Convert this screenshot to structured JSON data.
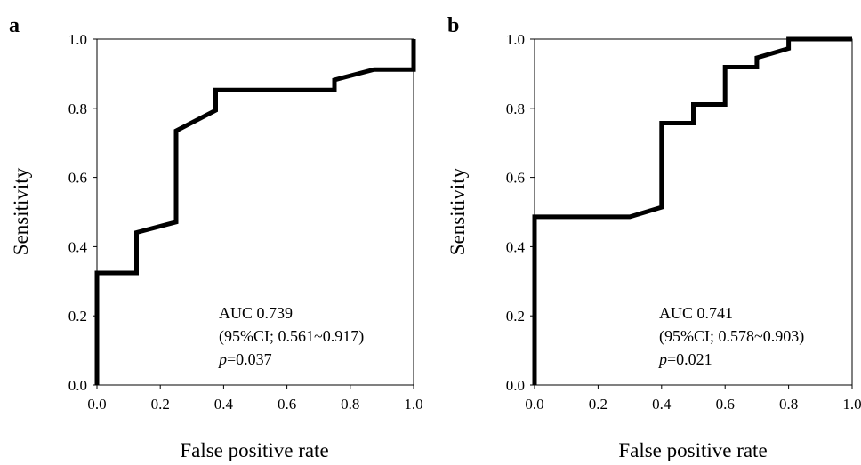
{
  "chart_data": [
    {
      "type": "line",
      "panel_label": "a",
      "xlabel": "False positive rate",
      "ylabel": "Sensitivity",
      "xlim": [
        0,
        1
      ],
      "ylim": [
        0,
        1
      ],
      "xticks": [
        "0.0",
        "0.2",
        "0.4",
        "0.6",
        "0.8",
        "1.0"
      ],
      "yticks": [
        "0.0",
        "0.2",
        "0.4",
        "0.6",
        "0.8",
        "1.0"
      ],
      "grid": false,
      "series": [
        {
          "color": "#000000",
          "x": [
            0.0,
            0.0,
            0.125,
            0.125,
            0.25,
            0.25,
            0.375,
            0.375,
            0.75,
            0.75,
            0.875,
            1.0,
            1.0
          ],
          "y": [
            0.0,
            0.324,
            0.324,
            0.441,
            0.471,
            0.735,
            0.794,
            0.853,
            0.853,
            0.882,
            0.912,
            0.912,
            1.0
          ]
        }
      ],
      "annotation": {
        "auc": "AUC 0.739",
        "ci": "(95%CI; 0.561~0.917)",
        "p_symbol": "p",
        "p_value": "=0.037"
      }
    },
    {
      "type": "line",
      "panel_label": "b",
      "xlabel": "False positive rate",
      "ylabel": "Sensitivity",
      "xlim": [
        0,
        1
      ],
      "ylim": [
        0,
        1
      ],
      "xticks": [
        "0.0",
        "0.2",
        "0.4",
        "0.6",
        "0.8",
        "1.0"
      ],
      "yticks": [
        "0.0",
        "0.2",
        "0.4",
        "0.6",
        "0.8",
        "1.0"
      ],
      "grid": false,
      "series": [
        {
          "color": "#000000",
          "x": [
            0.0,
            0.0,
            0.3,
            0.4,
            0.4,
            0.5,
            0.5,
            0.6,
            0.6,
            0.7,
            0.7,
            0.8,
            0.8,
            1.0
          ],
          "y": [
            0.0,
            0.486,
            0.486,
            0.514,
            0.757,
            0.757,
            0.811,
            0.811,
            0.919,
            0.919,
            0.946,
            0.973,
            1.0,
            1.0
          ]
        }
      ],
      "annotation": {
        "auc": "AUC 0.741",
        "ci": "(95%CI; 0.578~0.903)",
        "p_symbol": "p",
        "p_value": "=0.021"
      }
    }
  ]
}
